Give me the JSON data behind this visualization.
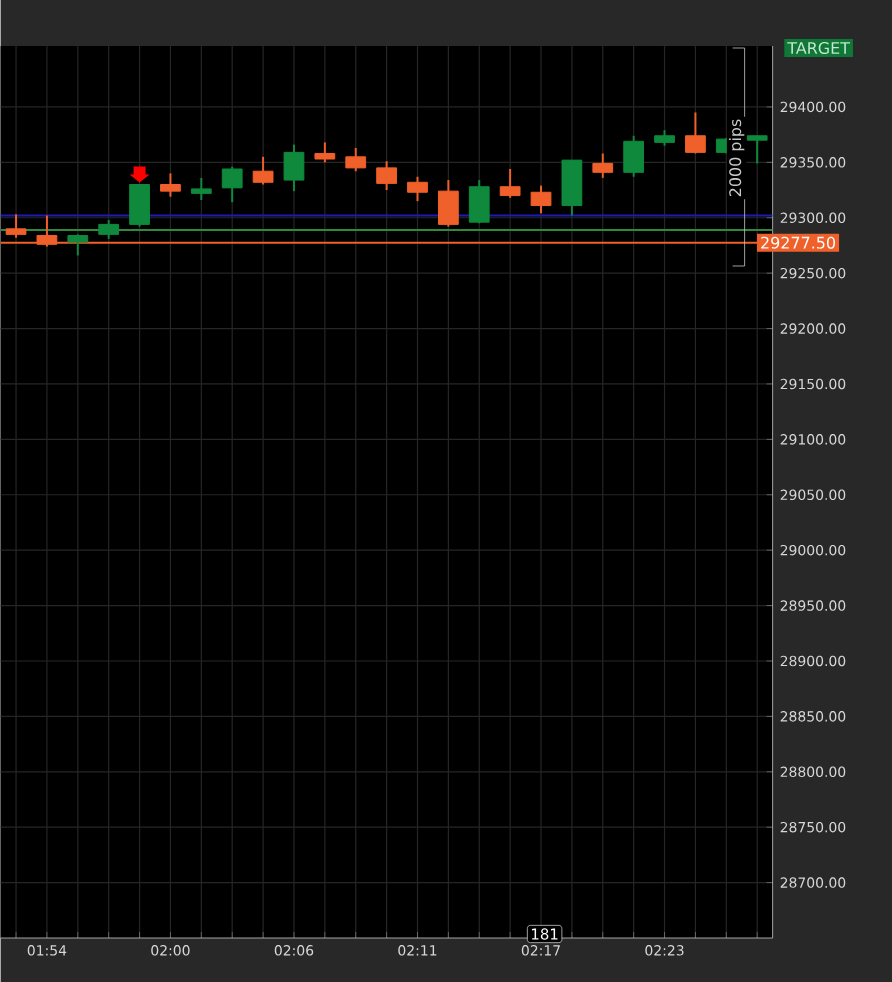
{
  "chart_data": {
    "type": "candlestick",
    "categories": [
      null,
      "01:54",
      null,
      null,
      null,
      "02:00",
      null,
      null,
      null,
      "02:06",
      null,
      null,
      null,
      "02:11",
      null,
      null,
      null,
      "02:17",
      null,
      null,
      null,
      "02:23",
      null,
      null,
      null
    ],
    "ohlc": [
      [
        29290,
        29303,
        29282,
        29285
      ],
      [
        29284,
        29302,
        29274,
        29276
      ],
      [
        29278,
        29285,
        29266,
        29284
      ],
      [
        29285,
        29298,
        29281,
        29294
      ],
      [
        29294,
        29330,
        29292,
        29330
      ],
      [
        29330,
        29340,
        29319,
        29324
      ],
      [
        29322,
        29336,
        29316,
        29326
      ],
      [
        29327,
        29346,
        29314,
        29344
      ],
      [
        29342,
        29355,
        29330,
        29332
      ],
      [
        29334,
        29366,
        29324,
        29359
      ],
      [
        29358,
        29368,
        29350,
        29353
      ],
      [
        29355,
        29363,
        29342,
        29345
      ],
      [
        29345,
        29351,
        29325,
        29331
      ],
      [
        29332,
        29337,
        29315,
        29323
      ],
      [
        29324,
        29334,
        29292,
        29294
      ],
      [
        29296,
        29334,
        29295,
        29328
      ],
      [
        29328,
        29344,
        29318,
        29320
      ],
      [
        29323,
        29329,
        29304,
        29311
      ],
      [
        29311,
        29352,
        29302,
        29352
      ],
      [
        29349,
        29358,
        29336,
        29341
      ],
      [
        29341,
        29374,
        29337,
        29369
      ],
      [
        29368,
        29379,
        29365,
        29374
      ],
      [
        29374,
        29395,
        29358,
        29359
      ],
      [
        29359,
        29372,
        29358,
        29371
      ],
      [
        29370,
        29374,
        29349,
        29374
      ]
    ],
    "colors": [
      "#f0602a",
      "#f0602a",
      "#0f8a3c",
      "#0f8a3c",
      "#0f8a3c",
      "#f0602a",
      "#0f8a3c",
      "#0f8a3c",
      "#f0602a",
      "#0f8a3c",
      "#f0602a",
      "#f0602a",
      "#f0602a",
      "#f0602a",
      "#f0602a",
      "#0f8a3c",
      "#f0602a",
      "#f0602a",
      "#0f8a3c",
      "#f0602a",
      "#0f8a3c",
      "#0f8a3c",
      "#f0602a",
      "#0f8a3c",
      "#0f8a3c"
    ],
    "ylim": [
      28650,
      29455
    ],
    "yticks": [
      {
        "value": 28700,
        "label": "28700.00"
      },
      {
        "value": 28750,
        "label": "28750.00"
      },
      {
        "value": 28800,
        "label": "28800.00"
      },
      {
        "value": 28850,
        "label": "28850.00"
      },
      {
        "value": 28900,
        "label": "28900.00"
      },
      {
        "value": 28950,
        "label": "28950.00"
      },
      {
        "value": 29000,
        "label": "29000.00"
      },
      {
        "value": 29050,
        "label": "29050.00"
      },
      {
        "value": 29100,
        "label": "29100.00"
      },
      {
        "value": 29150,
        "label": "29150.00"
      },
      {
        "value": 29200,
        "label": "29200.00"
      },
      {
        "value": 29250,
        "label": "29250.00"
      },
      {
        "value": 29300,
        "label": "29300.00"
      },
      {
        "value": 29350,
        "label": "29350.00"
      },
      {
        "value": 29400,
        "label": "29400.00"
      }
    ],
    "ref_lines": [
      {
        "axis": "y",
        "value": 29302,
        "color": "#1c1cb4"
      },
      {
        "axis": "y",
        "value": 29289,
        "color": "#2e8b3e"
      },
      {
        "axis": "y",
        "value": 29277.5,
        "label": "29277.50",
        "color": "#f0602a"
      }
    ],
    "annotations": [
      "TARGET",
      "2000 pips",
      "181"
    ],
    "grid": true
  }
}
